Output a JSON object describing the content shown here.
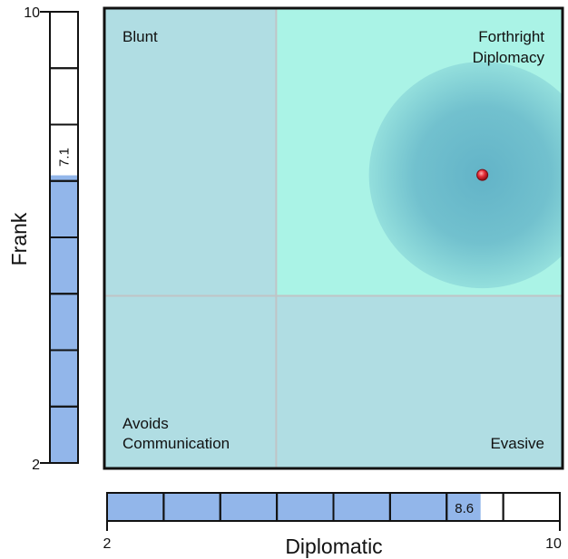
{
  "chart_data": {
    "type": "scatter",
    "title": "",
    "xlabel": "Diplomatic",
    "ylabel": "Frank",
    "xlim": [
      2,
      10
    ],
    "ylim": [
      2,
      10
    ],
    "x_ticks": [
      "2",
      "10"
    ],
    "y_ticks": [
      "2",
      "10"
    ],
    "quadrant_split": {
      "x": 5,
      "y": 5
    },
    "quadrants": {
      "top_left": "Blunt",
      "top_right": [
        "Forthright",
        "Diplomacy"
      ],
      "bottom_left": [
        "Avoids",
        "Communication"
      ],
      "bottom_right": "Evasive"
    },
    "point": {
      "x": 8.6,
      "y": 7.1,
      "x_label": "8.6",
      "y_label": "7.1"
    },
    "colors": {
      "quadrant": "#b0dde3",
      "highlight_quadrant": "#aaf3e6",
      "bar_fill": "#92b6ea",
      "halo": "#5fb0c6",
      "point": "#e8303a",
      "divider": "#c0c4c6",
      "frame": "#111111"
    }
  }
}
